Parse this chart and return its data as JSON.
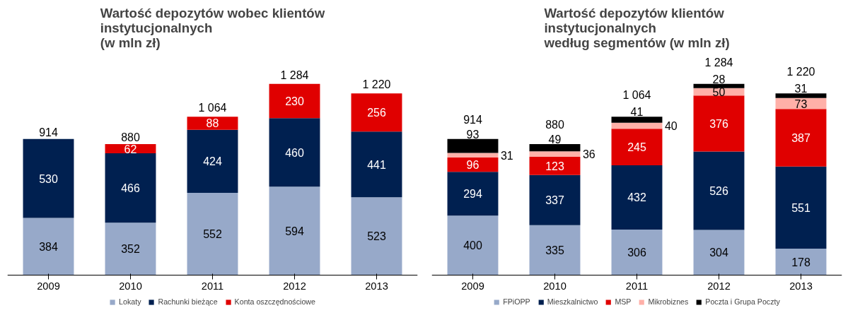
{
  "chart_data": [
    {
      "type": "bar",
      "stacked": true,
      "title": "Wartość depozytów wobec klientów\ninstytucjonalnych\n(w mln zł)",
      "categories": [
        "2009",
        "2010",
        "2011",
        "2012",
        "2013"
      ],
      "series": [
        {
          "name": "Lokaty",
          "color": "#97a9c9",
          "values": [
            384,
            352,
            552,
            594,
            523
          ]
        },
        {
          "name": "Rachunki bieżące",
          "color": "#002050",
          "values": [
            530,
            466,
            424,
            460,
            441
          ]
        },
        {
          "name": "Konta oszczędnościowe",
          "color": "#e00000",
          "values": [
            null,
            62,
            88,
            230,
            256
          ]
        }
      ],
      "data_labels": true,
      "totals": [
        "914",
        "880",
        "1 064",
        "1 284",
        "1 220"
      ],
      "legend": "bottom",
      "grid": false,
      "tick_labels": "x"
    },
    {
      "type": "bar",
      "stacked": true,
      "title": "Wartość depozytów klientów\ninstytucjonalnych\nwedług segmentów (w mln zł)",
      "categories": [
        "2009",
        "2010",
        "2011",
        "2012",
        "2013"
      ],
      "series": [
        {
          "name": "FPiOPP",
          "color": "#97a9c9",
          "values": [
            400,
            335,
            306,
            304,
            178
          ]
        },
        {
          "name": "Mieszkalnictwo",
          "color": "#002050",
          "values": [
            294,
            337,
            432,
            526,
            551
          ]
        },
        {
          "name": "MSP",
          "color": "#e00000",
          "values": [
            96,
            123,
            245,
            376,
            387
          ]
        },
        {
          "name": "Mikrobiznes",
          "color": "#ffb0a8",
          "values": [
            31,
            36,
            40,
            50,
            73
          ]
        },
        {
          "name": "Poczta i Grupa Poczty",
          "color": "#000000",
          "values": [
            93,
            49,
            41,
            28,
            31
          ]
        }
      ],
      "data_labels": true,
      "totals": [
        "914",
        "880",
        "1 064",
        "1 284",
        "1 220"
      ],
      "legend": "bottom",
      "grid": false,
      "tick_labels": "x"
    }
  ]
}
